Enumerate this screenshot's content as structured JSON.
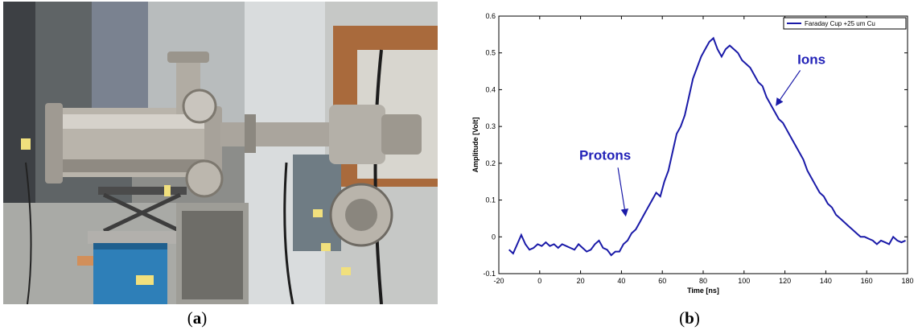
{
  "figure": {
    "caption_a": "a",
    "caption_b": "b"
  },
  "photo": {
    "description_icon": "vacuum-chamber-photo"
  },
  "chart_data": {
    "type": "line",
    "xlabel": "Time [ns]",
    "ylabel": "Amplitude [Volt]",
    "xlim": [
      -20,
      180
    ],
    "ylim": [
      -0.1,
      0.6
    ],
    "xticks": [
      -20,
      0,
      20,
      40,
      60,
      80,
      100,
      120,
      140,
      160,
      180
    ],
    "yticks": [
      -0.1,
      0,
      0.1,
      0.2,
      0.3,
      0.4,
      0.5,
      0.6
    ],
    "legend": {
      "position": "top-right",
      "entries": [
        "Faraday Cup +25 um Cu"
      ]
    },
    "annotations": [
      {
        "text": "Protons",
        "x": 32,
        "y": 0.21,
        "arrow_to": [
          42,
          0.06
        ]
      },
      {
        "text": "Ions",
        "x": 133,
        "y": 0.47,
        "arrow_to": [
          116,
          0.36
        ]
      }
    ],
    "series": [
      {
        "name": "Faraday Cup +25 um Cu",
        "color": "#1a1aa8",
        "x": [
          -15,
          -13,
          -11,
          -9,
          -7,
          -5,
          -3,
          -1,
          1,
          3,
          5,
          7,
          9,
          11,
          13,
          15,
          17,
          19,
          21,
          23,
          25,
          27,
          29,
          31,
          33,
          35,
          37,
          39,
          41,
          43,
          45,
          47,
          49,
          51,
          53,
          55,
          57,
          59,
          61,
          63,
          65,
          67,
          69,
          71,
          73,
          75,
          77,
          79,
          81,
          83,
          85,
          87,
          89,
          91,
          93,
          95,
          97,
          99,
          101,
          103,
          105,
          107,
          109,
          111,
          113,
          115,
          117,
          119,
          121,
          123,
          125,
          127,
          129,
          131,
          133,
          135,
          137,
          139,
          141,
          143,
          145,
          147,
          149,
          151,
          153,
          155,
          157,
          159,
          161,
          163,
          165,
          167,
          169,
          171,
          173,
          175,
          177,
          179
        ],
        "values": [
          -0.035,
          -0.045,
          -0.02,
          0.005,
          -0.02,
          -0.035,
          -0.03,
          -0.02,
          -0.025,
          -0.015,
          -0.025,
          -0.02,
          -0.03,
          -0.02,
          -0.025,
          -0.03,
          -0.035,
          -0.02,
          -0.03,
          -0.04,
          -0.035,
          -0.02,
          -0.01,
          -0.03,
          -0.035,
          -0.05,
          -0.04,
          -0.04,
          -0.02,
          -0.01,
          0.01,
          0.02,
          0.04,
          0.06,
          0.08,
          0.1,
          0.12,
          0.11,
          0.15,
          0.18,
          0.23,
          0.28,
          0.3,
          0.33,
          0.38,
          0.43,
          0.46,
          0.49,
          0.51,
          0.53,
          0.54,
          0.51,
          0.49,
          0.51,
          0.52,
          0.51,
          0.5,
          0.48,
          0.47,
          0.46,
          0.44,
          0.42,
          0.41,
          0.38,
          0.36,
          0.34,
          0.32,
          0.31,
          0.29,
          0.27,
          0.25,
          0.23,
          0.21,
          0.18,
          0.16,
          0.14,
          0.12,
          0.11,
          0.09,
          0.08,
          0.06,
          0.05,
          0.04,
          0.03,
          0.02,
          0.01,
          0.0,
          0.0,
          -0.005,
          -0.01,
          -0.02,
          -0.01,
          -0.015,
          -0.02,
          0.0,
          -0.01,
          -0.015,
          -0.01
        ]
      }
    ]
  }
}
